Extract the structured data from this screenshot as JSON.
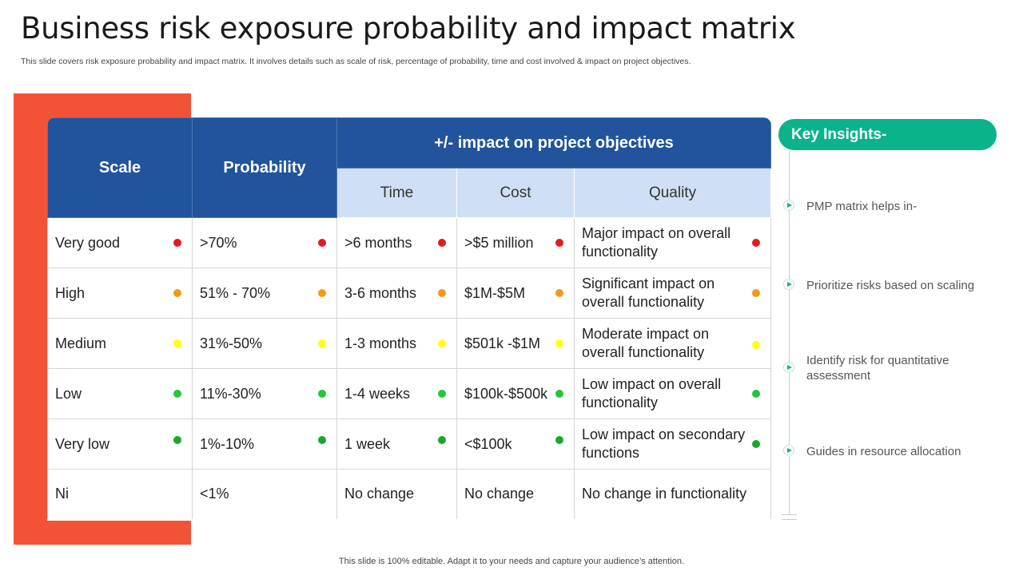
{
  "title": "Business risk exposure probability and impact matrix",
  "subtitle": "This slide covers risk exposure probability and impact matrix. It involves details such as scale of risk, percentage of probability, time and cost involved & impact on project objectives.",
  "footer": "This slide is 100% editable. Adapt it to your needs and capture your audience’s attention.",
  "table": {
    "headers": {
      "scale": "Scale",
      "probability": "Probability",
      "impact": "+/- impact on project objectives",
      "time": "Time",
      "cost": "Cost",
      "quality": "Quality"
    },
    "rows": [
      {
        "scale": "Very good",
        "probability": ">70%",
        "time": ">6 months",
        "cost": ">$5 million",
        "quality": "Major impact on overall functionality",
        "indicator": "red"
      },
      {
        "scale": "High",
        "probability": "51% - 70%",
        "time": "3-6 months",
        "cost": "$1M-$5M",
        "quality": "Significant impact on overall functionality",
        "indicator": "orange"
      },
      {
        "scale": "Medium",
        "probability": "31%-50%",
        "time": "1-3 months",
        "cost": "$501k -$1M",
        "quality": "Moderate impact on overall functionality",
        "indicator": "yellow"
      },
      {
        "scale": "Low",
        "probability": "11%-30%",
        "time": "1-4 weeks",
        "cost": "$100k-$500k",
        "quality": "Low impact on overall functionality",
        "indicator": "green"
      },
      {
        "scale": "Very low",
        "probability": "1%-10%",
        "time": "1 week",
        "cost": "<$100k",
        "quality": "Low impact on secondary functions",
        "indicator": "dark-green"
      },
      {
        "scale": "Ni",
        "probability": "<1%",
        "time": "No change",
        "cost": "No change",
        "quality": "No change in functionality",
        "indicator": "none"
      }
    ]
  },
  "insights": {
    "heading": "Key Insights-",
    "items": [
      "PMP matrix helps in-",
      "Prioritize risks based on scaling",
      "Identify  risk for quantitative  assessment",
      "Guides in resource allocation"
    ]
  },
  "colors": {
    "accent_red": "#f25336",
    "header_blue": "#21549c",
    "subheader_blue": "#cfdff5",
    "insight_green": "#0bb38a",
    "dot_red": "#e21b1b",
    "dot_orange": "#f29a17",
    "dot_yellow": "#ffff10",
    "dot_green": "#23c63a",
    "dot_dark_green": "#18a82c"
  }
}
